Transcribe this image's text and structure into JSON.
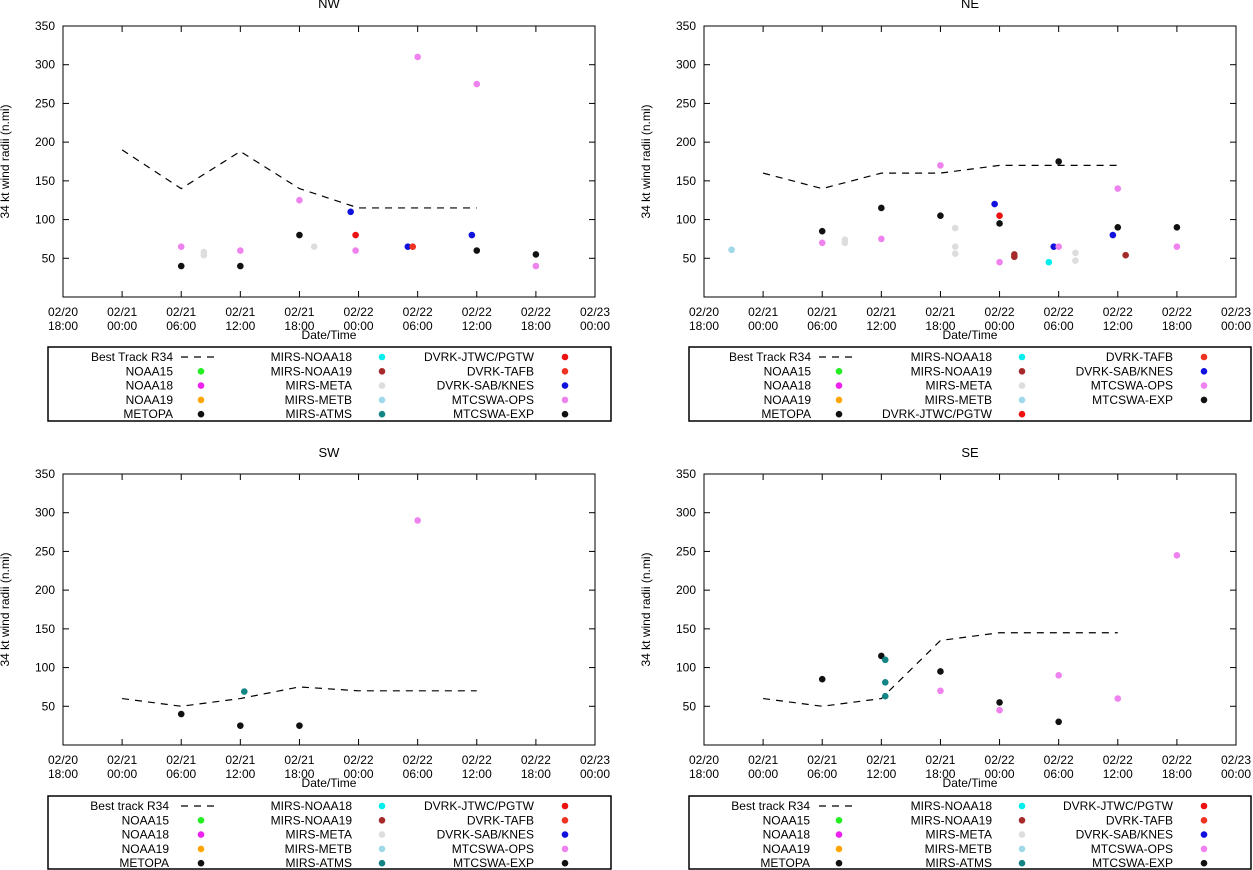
{
  "common": {
    "xlabel": "Date/Time",
    "ylabel": "34 kt wind radii (n.mi)",
    "xticks": [
      {
        "l1": "02/20",
        "l2": "18:00"
      },
      {
        "l1": "02/21",
        "l2": "00:00"
      },
      {
        "l1": "02/21",
        "l2": "06:00"
      },
      {
        "l1": "02/21",
        "l2": "12:00"
      },
      {
        "l1": "02/21",
        "l2": "18:00"
      },
      {
        "l1": "02/22",
        "l2": "00:00"
      },
      {
        "l1": "02/22",
        "l2": "06:00"
      },
      {
        "l1": "02/22",
        "l2": "12:00"
      },
      {
        "l1": "02/22",
        "l2": "18:00"
      },
      {
        "l1": "02/23",
        "l2": "00:00"
      }
    ],
    "yticks": [
      50,
      100,
      150,
      200,
      250,
      300,
      350
    ],
    "xlim_hours": [
      0,
      54
    ],
    "ylim": [
      0,
      350
    ]
  },
  "colors": {
    "NOAA15": "#22ee22",
    "NOAA18": "#ee22ee",
    "NOAA19": "#ffa500",
    "METOPA": "#111111",
    "MIRS-NOAA18": "#00eeee",
    "MIRS-NOAA19": "#a52a2a",
    "MIRS-META": "#dddddd",
    "MIRS-METB": "#9fd8e8",
    "MIRS-ATMS": "#138585",
    "DVRK-JTWC/PGTW": "#ee1111",
    "DVRK-TAFB": "#ee3322",
    "DVRK-SAB/KNES": "#1111dd",
    "MTCSWA-OPS": "#ee82ee",
    "MTCSWA-EXP": "#111111"
  },
  "chart_data": [
    {
      "type": "scatter",
      "title": "NW",
      "xlabel": "Date/Time",
      "ylabel": "34 kt wind radii (n.mi)",
      "ylim": [
        0,
        350
      ],
      "best_track": {
        "x": [
          6,
          12,
          18,
          24,
          30,
          36,
          42
        ],
        "y": [
          190,
          140,
          188,
          140,
          115,
          115,
          115
        ]
      },
      "points": [
        {
          "series": "METOPA",
          "x": 12,
          "y": 40
        },
        {
          "series": "MTCSWA-OPS",
          "x": 12,
          "y": 65
        },
        {
          "series": "MIRS-META",
          "x": 14.3,
          "y": 58
        },
        {
          "series": "MIRS-META",
          "x": 14.3,
          "y": 54
        },
        {
          "series": "METOPA",
          "x": 18,
          "y": 40
        },
        {
          "series": "MTCSWA-OPS",
          "x": 18,
          "y": 60
        },
        {
          "series": "MTCSWA-OPS",
          "x": 24,
          "y": 125
        },
        {
          "series": "METOPA",
          "x": 24,
          "y": 80
        },
        {
          "series": "MIRS-META",
          "x": 25.5,
          "y": 65
        },
        {
          "series": "DVRK-SAB/KNES",
          "x": 29.2,
          "y": 110
        },
        {
          "series": "DVRK-JTWC/PGTW",
          "x": 29.7,
          "y": 80
        },
        {
          "series": "MTCSWA-OPS",
          "x": 29.7,
          "y": 60
        },
        {
          "series": "DVRK-SAB/KNES",
          "x": 35,
          "y": 65
        },
        {
          "series": "DVRK-TAFB",
          "x": 35.5,
          "y": 65
        },
        {
          "series": "MTCSWA-OPS",
          "x": 36,
          "y": 310
        },
        {
          "series": "DVRK-SAB/KNES",
          "x": 41.5,
          "y": 80
        },
        {
          "series": "MTCSWA-OPS",
          "x": 42,
          "y": 275
        },
        {
          "series": "MTCSWA-EXP",
          "x": 42,
          "y": 60
        },
        {
          "series": "METOPA",
          "x": 48,
          "y": 55
        },
        {
          "series": "MTCSWA-OPS",
          "x": 48,
          "y": 40
        }
      ],
      "legend": {
        "columns": [
          [
            {
              "label": "Best Track R34",
              "series": "best-track",
              "kind": "dash"
            },
            {
              "label": "NOAA15",
              "series": "NOAA15",
              "kind": "dot"
            },
            {
              "label": "NOAA18",
              "series": "NOAA18",
              "kind": "dot"
            },
            {
              "label": "NOAA19",
              "series": "NOAA19",
              "kind": "dot"
            },
            {
              "label": "METOPA",
              "series": "METOPA",
              "kind": "dot"
            }
          ],
          [
            {
              "label": "MIRS-NOAA18",
              "series": "MIRS-NOAA18",
              "kind": "dot"
            },
            {
              "label": "MIRS-NOAA19",
              "series": "MIRS-NOAA19",
              "kind": "dot"
            },
            {
              "label": "MIRS-META",
              "series": "MIRS-META",
              "kind": "dot"
            },
            {
              "label": "MIRS-METB",
              "series": "MIRS-METB",
              "kind": "dot"
            },
            {
              "label": "MIRS-ATMS",
              "series": "MIRS-ATMS",
              "kind": "dot"
            }
          ],
          [
            {
              "label": "DVRK-JTWC/PGTW",
              "series": "DVRK-JTWC/PGTW",
              "kind": "dot"
            },
            {
              "label": "DVRK-TAFB",
              "series": "DVRK-TAFB",
              "kind": "dot"
            },
            {
              "label": "DVRK-SAB/KNES",
              "series": "DVRK-SAB/KNES",
              "kind": "dot"
            },
            {
              "label": "MTCSWA-OPS",
              "series": "MTCSWA-OPS",
              "kind": "dot"
            },
            {
              "label": "MTCSWA-EXP",
              "series": "MTCSWA-EXP",
              "kind": "dot"
            }
          ]
        ]
      }
    },
    {
      "type": "scatter",
      "title": "NE",
      "xlabel": "Date/Time",
      "ylabel": "34 kt wind radii (n.mi)",
      "ylim": [
        0,
        350
      ],
      "best_track": {
        "x": [
          6,
          12,
          18,
          24,
          30,
          36,
          42
        ],
        "y": [
          160,
          140,
          160,
          160,
          170,
          170,
          170
        ]
      },
      "points": [
        {
          "series": "MIRS-METB",
          "x": 2.8,
          "y": 61
        },
        {
          "series": "METOPA",
          "x": 12,
          "y": 85
        },
        {
          "series": "MTCSWA-OPS",
          "x": 12,
          "y": 70
        },
        {
          "series": "MIRS-META",
          "x": 14.3,
          "y": 74
        },
        {
          "series": "MIRS-META",
          "x": 14.3,
          "y": 70
        },
        {
          "series": "METOPA",
          "x": 18,
          "y": 115
        },
        {
          "series": "MTCSWA-OPS",
          "x": 18,
          "y": 75
        },
        {
          "series": "MTCSWA-OPS",
          "x": 24,
          "y": 170
        },
        {
          "series": "METOPA",
          "x": 24,
          "y": 105
        },
        {
          "series": "MIRS-META",
          "x": 25.5,
          "y": 89
        },
        {
          "series": "MIRS-META",
          "x": 25.5,
          "y": 65
        },
        {
          "series": "MIRS-META",
          "x": 25.5,
          "y": 56
        },
        {
          "series": "DVRK-SAB/KNES",
          "x": 29.5,
          "y": 120
        },
        {
          "series": "DVRK-JTWC/PGTW",
          "x": 30,
          "y": 105
        },
        {
          "series": "METOPA",
          "x": 30,
          "y": 95
        },
        {
          "series": "MTCSWA-OPS",
          "x": 30,
          "y": 45
        },
        {
          "series": "MIRS-NOAA19",
          "x": 31.5,
          "y": 55
        },
        {
          "series": "MIRS-NOAA19",
          "x": 31.5,
          "y": 52
        },
        {
          "series": "MIRS-NOAA18",
          "x": 35,
          "y": 45
        },
        {
          "series": "DVRK-SAB/KNES",
          "x": 35.5,
          "y": 65
        },
        {
          "series": "MTCSWA-OPS",
          "x": 36,
          "y": 65
        },
        {
          "series": "METOPA",
          "x": 36,
          "y": 175
        },
        {
          "series": "MIRS-META",
          "x": 37.7,
          "y": 57
        },
        {
          "series": "MIRS-META",
          "x": 37.7,
          "y": 47
        },
        {
          "series": "MTCSWA-OPS",
          "x": 42,
          "y": 140
        },
        {
          "series": "METOPA",
          "x": 42,
          "y": 90
        },
        {
          "series": "DVRK-SAB/KNES",
          "x": 41.5,
          "y": 80
        },
        {
          "series": "MIRS-NOAA19",
          "x": 42.8,
          "y": 54
        },
        {
          "series": "METOPA",
          "x": 48,
          "y": 90
        },
        {
          "series": "MTCSWA-OPS",
          "x": 48,
          "y": 65
        }
      ],
      "legend": {
        "columns": [
          [
            {
              "label": "Best Track R34",
              "series": "best-track",
              "kind": "dash"
            },
            {
              "label": "NOAA15",
              "series": "NOAA15",
              "kind": "dot"
            },
            {
              "label": "NOAA18",
              "series": "NOAA18",
              "kind": "dot"
            },
            {
              "label": "NOAA19",
              "series": "NOAA19",
              "kind": "dot"
            },
            {
              "label": "METOPA",
              "series": "METOPA",
              "kind": "dot"
            }
          ],
          [
            {
              "label": "MIRS-NOAA18",
              "series": "MIRS-NOAA18",
              "kind": "dot"
            },
            {
              "label": "MIRS-NOAA19",
              "series": "MIRS-NOAA19",
              "kind": "dot"
            },
            {
              "label": "MIRS-META",
              "series": "MIRS-META",
              "kind": "dot"
            },
            {
              "label": "MIRS-METB",
              "series": "MIRS-METB",
              "kind": "dot"
            },
            {
              "label": "DVRK-JTWC/PGTW",
              "series": "DVRK-JTWC/PGTW",
              "kind": "dot"
            }
          ],
          [
            {
              "label": "DVRK-TAFB",
              "series": "DVRK-TAFB",
              "kind": "dot"
            },
            {
              "label": "DVRK-SAB/KNES",
              "series": "DVRK-SAB/KNES",
              "kind": "dot"
            },
            {
              "label": "MTCSWA-OPS",
              "series": "MTCSWA-OPS",
              "kind": "dot"
            },
            {
              "label": "MTCSWA-EXP",
              "series": "MTCSWA-EXP",
              "kind": "dot"
            }
          ]
        ]
      }
    },
    {
      "type": "scatter",
      "title": "SW",
      "xlabel": "Date/Time",
      "ylabel": "34 kt wind radii (n.mi)",
      "ylim": [
        0,
        350
      ],
      "best_track": {
        "x": [
          6,
          12,
          18,
          24,
          30,
          36,
          42
        ],
        "y": [
          60,
          50,
          60,
          75,
          70,
          70,
          70
        ]
      },
      "points": [
        {
          "series": "METOPA",
          "x": 12,
          "y": 40
        },
        {
          "series": "MIRS-ATMS",
          "x": 18.4,
          "y": 69
        },
        {
          "series": "METOPA",
          "x": 18,
          "y": 25
        },
        {
          "series": "METOPA",
          "x": 24,
          "y": 25
        },
        {
          "series": "MTCSWA-OPS",
          "x": 36,
          "y": 290
        }
      ],
      "legend": {
        "columns": [
          [
            {
              "label": "Best track R34",
              "series": "best-track",
              "kind": "dash"
            },
            {
              "label": "NOAA15",
              "series": "NOAA15",
              "kind": "dot"
            },
            {
              "label": "NOAA18",
              "series": "NOAA18",
              "kind": "dot"
            },
            {
              "label": "NOAA19",
              "series": "NOAA19",
              "kind": "dot"
            },
            {
              "label": "METOPA",
              "series": "METOPA",
              "kind": "dot"
            }
          ],
          [
            {
              "label": "MIRS-NOAA18",
              "series": "MIRS-NOAA18",
              "kind": "dot"
            },
            {
              "label": "MIRS-NOAA19",
              "series": "MIRS-NOAA19",
              "kind": "dot"
            },
            {
              "label": "MIRS-META",
              "series": "MIRS-META",
              "kind": "dot"
            },
            {
              "label": "MIRS-METB",
              "series": "MIRS-METB",
              "kind": "dot"
            },
            {
              "label": "MIRS-ATMS",
              "series": "MIRS-ATMS",
              "kind": "dot"
            }
          ],
          [
            {
              "label": "DVRK-JTWC/PGTW",
              "series": "DVRK-JTWC/PGTW",
              "kind": "dot"
            },
            {
              "label": "DVRK-TAFB",
              "series": "DVRK-TAFB",
              "kind": "dot"
            },
            {
              "label": "DVRK-SAB/KNES",
              "series": "DVRK-SAB/KNES",
              "kind": "dot"
            },
            {
              "label": "MTCSWA-OPS",
              "series": "MTCSWA-OPS",
              "kind": "dot"
            },
            {
              "label": "MTCSWA-EXP",
              "series": "MTCSWA-EXP",
              "kind": "dot"
            }
          ]
        ]
      }
    },
    {
      "type": "scatter",
      "title": "SE",
      "xlabel": "Date/Time",
      "ylabel": "34 kt wind radii (n.mi)",
      "ylim": [
        0,
        350
      ],
      "best_track": {
        "x": [
          6,
          12,
          18,
          24,
          30,
          36,
          42
        ],
        "y": [
          60,
          50,
          60,
          135,
          145,
          145,
          145
        ]
      },
      "points": [
        {
          "series": "METOPA",
          "x": 12,
          "y": 85
        },
        {
          "series": "METOPA",
          "x": 18,
          "y": 115
        },
        {
          "series": "MIRS-ATMS",
          "x": 18.4,
          "y": 110
        },
        {
          "series": "MIRS-ATMS",
          "x": 18.4,
          "y": 81
        },
        {
          "series": "MIRS-ATMS",
          "x": 18.4,
          "y": 63
        },
        {
          "series": "METOPA",
          "x": 24,
          "y": 95
        },
        {
          "series": "MTCSWA-OPS",
          "x": 24,
          "y": 70
        },
        {
          "series": "METOPA",
          "x": 30,
          "y": 55
        },
        {
          "series": "MTCSWA-OPS",
          "x": 30,
          "y": 45
        },
        {
          "series": "MTCSWA-OPS",
          "x": 36,
          "y": 90
        },
        {
          "series": "METOPA",
          "x": 36,
          "y": 30
        },
        {
          "series": "MTCSWA-OPS",
          "x": 42,
          "y": 60
        },
        {
          "series": "MTCSWA-OPS",
          "x": 48,
          "y": 245
        }
      ],
      "legend": {
        "columns": [
          [
            {
              "label": "Best track R34",
              "series": "best-track",
              "kind": "dash"
            },
            {
              "label": "NOAA15",
              "series": "NOAA15",
              "kind": "dot"
            },
            {
              "label": "NOAA18",
              "series": "NOAA18",
              "kind": "dot"
            },
            {
              "label": "NOAA19",
              "series": "NOAA19",
              "kind": "dot"
            },
            {
              "label": "METOPA",
              "series": "METOPA",
              "kind": "dot"
            }
          ],
          [
            {
              "label": "MIRS-NOAA18",
              "series": "MIRS-NOAA18",
              "kind": "dot"
            },
            {
              "label": "MIRS-NOAA19",
              "series": "MIRS-NOAA19",
              "kind": "dot"
            },
            {
              "label": "MIRS-META",
              "series": "MIRS-META",
              "kind": "dot"
            },
            {
              "label": "MIRS-METB",
              "series": "MIRS-METB",
              "kind": "dot"
            },
            {
              "label": "MIRS-ATMS",
              "series": "MIRS-ATMS",
              "kind": "dot"
            }
          ],
          [
            {
              "label": "DVRK-JTWC/PGTW",
              "series": "DVRK-JTWC/PGTW",
              "kind": "dot"
            },
            {
              "label": "DVRK-TAFB",
              "series": "DVRK-TAFB",
              "kind": "dot"
            },
            {
              "label": "DVRK-SAB/KNES",
              "series": "DVRK-SAB/KNES",
              "kind": "dot"
            },
            {
              "label": "MTCSWA-OPS",
              "series": "MTCSWA-OPS",
              "kind": "dot"
            },
            {
              "label": "MTCSWA-EXP",
              "series": "MTCSWA-EXP",
              "kind": "dot"
            }
          ]
        ]
      }
    }
  ]
}
